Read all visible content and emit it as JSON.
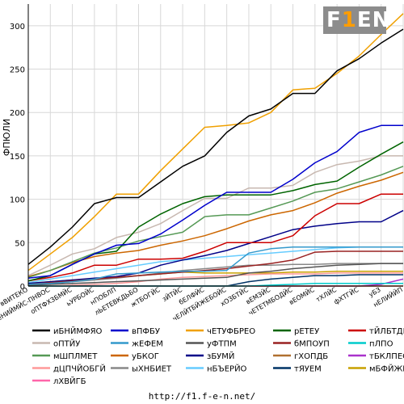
{
  "footer": {
    "url": "http://f1.f-e-n.net/"
  },
  "logo": {
    "text_main": "F",
    "text_accent": "1",
    "text_tail": "EN"
  },
  "chart_data": {
    "type": "line",
    "ylabel": "ФПЮЛИ",
    "ylim": [
      0,
      325
    ],
    "yticks": [
      0,
      50,
      100,
      150,
      200,
      250,
      300
    ],
    "grid": true,
    "legend_position": "bottom",
    "categories": [
      "вВИТЕКО",
      "еНИЙМЙС-ПНВОС",
      "оПТФХЗБМЙС",
      "ьУРБОЙС",
      "нПОБЛП",
      "лЬЕТЕВКДЬБО",
      "жТБОГЙС",
      "зЙТЙС",
      "бЕЛФЙС",
      "чЕЛЙТБЙЖЕБОЙС",
      "хОЗБТЙС",
      "вЕМЗЙС",
      "чЕТЕТМБОДЙС",
      "вЕОМЙС",
      "тХЛЙС",
      "фХТГЙС",
      "уБЗ",
      "нЕЛИЙЙП"
    ],
    "series": [
      {
        "name": "иБНЙМФЯО",
        "color": "#000000",
        "values": [
          25,
          45,
          68,
          95,
          102,
          102,
          120,
          138,
          150,
          177,
          196,
          204,
          222,
          222,
          248,
          262,
          280,
          296
        ]
      },
      {
        "name": "вПФБУ",
        "color": "#0000cc",
        "values": [
          9,
          12,
          25,
          37,
          47,
          49,
          60,
          76,
          93,
          108,
          108,
          108,
          123,
          142,
          155,
          177,
          185,
          185
        ]
      },
      {
        "name": "чЕТУФБРЕО",
        "color": "#f0a000",
        "values": [
          18,
          37,
          56,
          80,
          106,
          106,
          133,
          158,
          183,
          185,
          188,
          200,
          226,
          228,
          245,
          265,
          290,
          314
        ]
      },
      {
        "name": "рЕТЕУ",
        "color": "#006400",
        "values": [
          6,
          12,
          25,
          37,
          40,
          68,
          83,
          95,
          103,
          105,
          105,
          105,
          110,
          117,
          121,
          137,
          152,
          166
        ]
      },
      {
        "name": "тЙЛБТДП",
        "color": "#cc0000",
        "values": [
          6,
          10,
          15,
          24,
          24,
          31,
          31,
          32,
          40,
          50,
          50,
          50,
          58,
          81,
          95,
          95,
          106,
          106
        ]
      },
      {
        "name": "оПТЙУ",
        "color": "#c8b8b0",
        "values": [
          12,
          24,
          37,
          43,
          56,
          62,
          72,
          87,
          101,
          101,
          113,
          113,
          116,
          131,
          140,
          144,
          150,
          150
        ]
      },
      {
        "name": "жЕФЕМ",
        "color": "#3399cc",
        "values": [
          2,
          3,
          5,
          8,
          14,
          15,
          16,
          17,
          17,
          18,
          38,
          43,
          45,
          45,
          45,
          45,
          45,
          45
        ]
      },
      {
        "name": "уФТПМ",
        "color": "#555555",
        "values": [
          1,
          2,
          3,
          4,
          5,
          6,
          7,
          8,
          9,
          10,
          15,
          17,
          20,
          22,
          24,
          25,
          26,
          26
        ]
      },
      {
        "name": "бМПОУП",
        "color": "#992222",
        "values": [
          2,
          4,
          6,
          8,
          10,
          12,
          14,
          16,
          18,
          20,
          23,
          26,
          30,
          39,
          40,
          40,
          40,
          40
        ]
      },
      {
        "name": "пЛПО",
        "color": "#00cccc",
        "values": [
          0,
          0,
          0,
          0,
          0,
          0,
          0,
          0,
          0,
          0,
          0,
          1,
          2,
          3,
          3,
          3,
          3,
          3
        ]
      },
      {
        "name": "мШПЛМЕТ",
        "color": "#559955",
        "values": [
          10,
          18,
          28,
          38,
          44,
          52,
          57,
          62,
          80,
          82,
          82,
          90,
          98,
          108,
          112,
          120,
          128,
          138
        ]
      },
      {
        "name": "уБКОГ",
        "color": "#cc6600",
        "values": [
          11,
          18,
          27,
          34,
          38,
          41,
          47,
          52,
          58,
          66,
          75,
          82,
          87,
          96,
          107,
          115,
          122,
          131
        ]
      },
      {
        "name": "зБУМЙ",
        "color": "#000088",
        "values": [
          3,
          5,
          7,
          9,
          11,
          15,
          24,
          30,
          35,
          41,
          49,
          57,
          65,
          69,
          72,
          74,
          74,
          87
        ]
      },
      {
        "name": "гХОПДБ",
        "color": "#b07030",
        "values": [
          0,
          0,
          0,
          0,
          0,
          0,
          0,
          0,
          0,
          0,
          0,
          0,
          0,
          0,
          0,
          0,
          0,
          0
        ]
      },
      {
        "name": "тБКЛПЕО",
        "color": "#aa33cc",
        "values": [
          0,
          0,
          0,
          0,
          0,
          0,
          0,
          0,
          0,
          0,
          0,
          0,
          0,
          0,
          0,
          0,
          2,
          8
        ]
      },
      {
        "name": "дЦПЧЙОБГЙ",
        "color": "#ff9999",
        "values": [
          0,
          0,
          1,
          2,
          3,
          5,
          8,
          10,
          11,
          12,
          13,
          14,
          14,
          14,
          15,
          15,
          15,
          15
        ]
      },
      {
        "name": "ыХНБИЕТ",
        "color": "#888888",
        "values": [
          1,
          3,
          5,
          7,
          9,
          12,
          15,
          18,
          20,
          22,
          24,
          24,
          25,
          25,
          26,
          26,
          26,
          26
        ]
      },
      {
        "name": "нБЪЕРЙО",
        "color": "#66ccff",
        "values": [
          4,
          8,
          12,
          16,
          20,
          24,
          28,
          30,
          32,
          34,
          36,
          38,
          40,
          42,
          44,
          45,
          45,
          45
        ]
      },
      {
        "name": "тЯУЕМ",
        "color": "#003366",
        "values": [
          0,
          0,
          0,
          0,
          0,
          0,
          0,
          0,
          0,
          0,
          5,
          8,
          10,
          12,
          12,
          13,
          13,
          13
        ]
      },
      {
        "name": "мБФЙЖЙ",
        "color": "#c8a000",
        "values": [
          3,
          5,
          7,
          8,
          10,
          12,
          14,
          16,
          15,
          15,
          15,
          15,
          16,
          16,
          17,
          17,
          17,
          17
        ]
      },
      {
        "name": "лХВЙГБ",
        "color": "#ff66aa",
        "values": [
          0,
          0,
          0,
          0,
          0,
          0,
          0,
          0,
          0,
          0,
          0,
          0,
          0,
          0,
          0,
          0,
          0,
          0
        ]
      }
    ]
  }
}
